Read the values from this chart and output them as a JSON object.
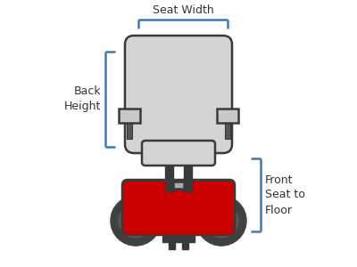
{
  "bg_color": "#ffffff",
  "chair_color": "#d4d4d4",
  "chair_stroke": "#3a3a3a",
  "armrest_color": "#c8c8c8",
  "seat_color": "#d4d4d4",
  "wheel_color": "#404040",
  "wheel_inner": "#555555",
  "base_color": "#cc0000",
  "bracket_color": "#3a7bbf",
  "text_color": "#333333",
  "seat_width_label": "Seat Width",
  "back_height_label": "Back\nHeight",
  "floor_label": "Front\nSeat to\nFloor",
  "stroke_lw": 1.8
}
